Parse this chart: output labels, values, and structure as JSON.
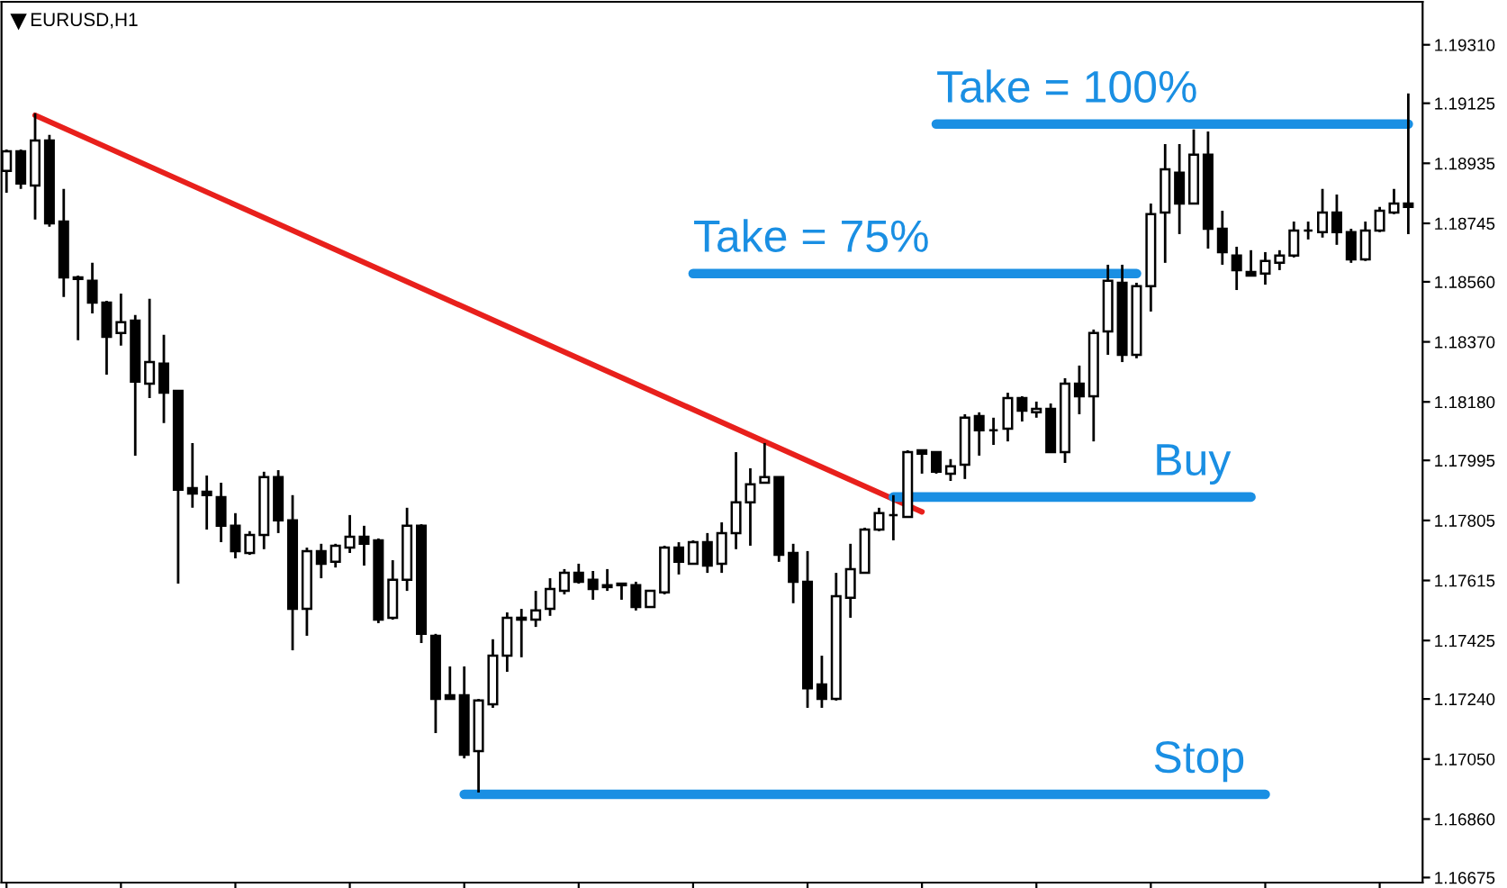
{
  "chart_data": {
    "type": "candlestick",
    "title": "EURUSD,H1",
    "categories": [
      null,
      null,
      null,
      null,
      null,
      null,
      null,
      null,
      null,
      null,
      null,
      null,
      null,
      null,
      null,
      null,
      null,
      null,
      null,
      null,
      null,
      null,
      null,
      null,
      null,
      null,
      null,
      null,
      null,
      null,
      null,
      null,
      null,
      null,
      null,
      null,
      null,
      null,
      null,
      null,
      null,
      null,
      null,
      null,
      null,
      null,
      null,
      null,
      null,
      null,
      null,
      null,
      null,
      null,
      null,
      null,
      null,
      null,
      null,
      null,
      null,
      null,
      null,
      null,
      null,
      null,
      null,
      null,
      null,
      null,
      null,
      null,
      null,
      null,
      null,
      null,
      null,
      null,
      null,
      null,
      null,
      null,
      null,
      null,
      null,
      null,
      null,
      null,
      null,
      null,
      null,
      null,
      null,
      null,
      null,
      null,
      null,
      null,
      null
    ],
    "ohlc": [
      [
        1.18911,
        1.18979,
        1.18842,
        1.18973
      ],
      [
        1.18973,
        1.18979,
        1.18854,
        1.18871
      ],
      [
        1.18865,
        1.19093,
        1.18757,
        1.19007
      ],
      [
        1.19007,
        1.19025,
        1.18734,
        1.18745
      ],
      [
        1.18751,
        1.18854,
        1.18512,
        1.18574
      ],
      [
        1.18574,
        1.1858,
        1.18375,
        1.18569
      ],
      [
        1.18563,
        1.1862,
        1.1846,
        1.18494
      ],
      [
        1.18494,
        1.185,
        1.18266,
        1.18386
      ],
      [
        1.18398,
        1.18523,
        1.18358,
        1.18432
      ],
      [
        1.18437,
        1.18455,
        1.1801,
        1.18244
      ],
      [
        1.18238,
        1.18506,
        1.18192,
        1.18306
      ],
      [
        1.18301,
        1.18392,
        1.18113,
        1.18209
      ],
      [
        1.18215,
        1.18215,
        1.17605,
        1.17902
      ],
      [
        1.17907,
        1.1805,
        1.17845,
        1.1789
      ],
      [
        1.17896,
        1.17947,
        1.17776,
        1.17885
      ],
      [
        1.17879,
        1.17924,
        1.17736,
        1.17788
      ],
      [
        1.17788,
        1.17828,
        1.17685,
        1.17708
      ],
      [
        1.17702,
        1.17771,
        1.17696,
        1.17759
      ],
      [
        1.17759,
        1.17959,
        1.17714,
        1.17942
      ],
      [
        1.17942,
        1.17964,
        1.17765,
        1.17805
      ],
      [
        1.17805,
        1.17885,
        1.17394,
        1.17525
      ],
      [
        1.17525,
        1.17719,
        1.1744,
        1.17708
      ],
      [
        1.17708,
        1.17731,
        1.17622,
        1.17668
      ],
      [
        1.17674,
        1.17731,
        1.17656,
        1.17725
      ],
      [
        1.17719,
        1.17822,
        1.17702,
        1.17753
      ],
      [
        1.17753,
        1.17788,
        1.17662,
        1.17731
      ],
      [
        1.17742,
        1.17748,
        1.1748,
        1.17491
      ],
      [
        1.17497,
        1.17679,
        1.17491,
        1.17617
      ],
      [
        1.17617,
        1.17845,
        1.17582,
        1.17788
      ],
      [
        1.17788,
        1.17793,
        1.17417,
        1.17446
      ],
      [
        1.1744,
        1.17446,
        1.17132,
        1.1724
      ],
      [
        1.17252,
        1.17343,
        1.1724,
        1.1724
      ],
      [
        1.17252,
        1.17343,
        1.17052,
        1.17064
      ],
      [
        1.17075,
        1.1724,
        1.16944,
        1.17235
      ],
      [
        1.17223,
        1.17429,
        1.17212,
        1.17377
      ],
      [
        1.17377,
        1.17514,
        1.17326,
        1.17497
      ],
      [
        1.17497,
        1.17525,
        1.17372,
        1.17491
      ],
      [
        1.17491,
        1.17582,
        1.17468,
        1.1752
      ],
      [
        1.17525,
        1.17622,
        1.17503,
        1.17588
      ],
      [
        1.17582,
        1.17651,
        1.17571,
        1.17639
      ],
      [
        1.17639,
        1.17668,
        1.17605,
        1.17611
      ],
      [
        1.17617,
        1.17645,
        1.17554,
        1.17588
      ],
      [
        1.176,
        1.17651,
        1.17582,
        1.17594
      ],
      [
        1.17605,
        1.17605,
        1.17554,
        1.176
      ],
      [
        1.176,
        1.17611,
        1.1752,
        1.17531
      ],
      [
        1.17531,
        1.17582,
        1.17531,
        1.17582
      ],
      [
        1.17577,
        1.17725,
        1.17571,
        1.17719
      ],
      [
        1.17719,
        1.17736,
        1.17634,
        1.17674
      ],
      [
        1.17668,
        1.17742,
        1.17668,
        1.17736
      ],
      [
        1.17736,
        1.17765,
        1.17639,
        1.17662
      ],
      [
        1.17668,
        1.17799,
        1.17639,
        1.17765
      ],
      [
        1.17765,
        1.18021,
        1.17714,
        1.17862
      ],
      [
        1.17862,
        1.1797,
        1.17725,
        1.17919
      ],
      [
        1.17924,
        1.1805,
        1.17924,
        1.17942
      ],
      [
        1.17942,
        1.17942,
        1.17674,
        1.17696
      ],
      [
        1.17702,
        1.17731,
        1.17543,
        1.17611
      ],
      [
        1.17611,
        1.17708,
        1.17212,
        1.17274
      ],
      [
        1.17286,
        1.17377,
        1.17212,
        1.1724
      ],
      [
        1.1724,
        1.17639,
        1.17235,
        1.17565
      ],
      [
        1.1756,
        1.17731,
        1.17497,
        1.17651
      ],
      [
        1.17639,
        1.17782,
        1.17639,
        1.17776
      ],
      [
        1.17776,
        1.17845,
        1.17771,
        1.17828
      ],
      [
        1.17822,
        1.17885,
        1.17742,
        1.17822
      ],
      [
        1.17816,
        1.18027,
        1.17816,
        1.18021
      ],
      [
        1.18027,
        1.18027,
        1.17953,
        1.18016
      ],
      [
        1.18021,
        1.18021,
        1.17953,
        1.17959
      ],
      [
        1.17953,
        1.17999,
        1.1793,
        1.17976
      ],
      [
        1.17981,
        1.18141,
        1.17936,
        1.1813
      ],
      [
        1.18135,
        1.18147,
        1.1801,
        1.1809
      ],
      [
        1.1809,
        1.1813,
        1.18044,
        1.1809
      ],
      [
        1.18095,
        1.18209,
        1.18055,
        1.18192
      ],
      [
        1.18192,
        1.18198,
        1.18118,
        1.18152
      ],
      [
        1.18147,
        1.18181,
        1.1813,
        1.18158
      ],
      [
        1.18158,
        1.18175,
        1.18021,
        1.18021
      ],
      [
        1.18021,
        1.18255,
        1.17987,
        1.18238
      ],
      [
        1.18238,
        1.18295,
        1.18141,
        1.18198
      ],
      [
        1.18198,
        1.18409,
        1.18055,
        1.18398
      ],
      [
        1.18403,
        1.18614,
        1.18329,
        1.18563
      ],
      [
        1.18557,
        1.18614,
        1.18306,
        1.18329
      ],
      [
        1.18329,
        1.18557,
        1.18318,
        1.18546
      ],
      [
        1.18546,
        1.18808,
        1.18466,
        1.18774
      ],
      [
        1.18779,
        1.18996,
        1.1862,
        1.18916
      ],
      [
        1.18905,
        1.18996,
        1.18711,
        1.18808
      ],
      [
        1.18808,
        1.19042,
        1.18808,
        1.18962
      ],
      [
        1.18962,
        1.19036,
        1.18665,
        1.18728
      ],
      [
        1.18728,
        1.18785,
        1.18614,
        1.18654
      ],
      [
        1.18643,
        1.18671,
        1.18534,
        1.18597
      ],
      [
        1.18591,
        1.1866,
        1.1858,
        1.1858
      ],
      [
        1.18586,
        1.18654,
        1.18551,
        1.18626
      ],
      [
        1.1862,
        1.1866,
        1.18597,
        1.18643
      ],
      [
        1.18643,
        1.18751,
        1.18637,
        1.18722
      ],
      [
        1.18722,
        1.18751,
        1.18694,
        1.18722
      ],
      [
        1.18717,
        1.18854,
        1.187,
        1.18779
      ],
      [
        1.18779,
        1.18836,
        1.18677,
        1.18717
      ],
      [
        1.18717,
        1.18728,
        1.1862,
        1.18631
      ],
      [
        1.18631,
        1.18751,
        1.18626,
        1.18722
      ],
      [
        1.18722,
        1.18797,
        1.18717,
        1.18785
      ],
      [
        1.18779,
        1.18854,
        1.18774,
        1.18808
      ],
      [
        1.18808,
        1.19156,
        1.18711,
        1.18797
      ]
    ],
    "series": [
      {
        "type": "line",
        "color": "#e8201c",
        "values": [
          null,
          null,
          1.19087,
          null,
          null,
          null,
          null,
          null,
          null,
          null,
          null,
          null,
          null,
          null,
          null,
          null,
          null,
          null,
          null,
          null,
          null,
          null,
          null,
          null,
          null,
          null,
          null,
          null,
          null,
          null,
          null,
          null,
          null,
          null,
          null,
          null,
          null,
          null,
          null,
          null,
          null,
          null,
          null,
          null,
          null,
          null,
          null,
          null,
          null,
          null,
          null,
          null,
          null,
          null,
          null,
          null,
          null,
          null,
          null,
          null,
          null,
          null,
          null,
          null,
          1.17832,
          null,
          null,
          null,
          null,
          null,
          null,
          null,
          null,
          null,
          null,
          null,
          null,
          null,
          null,
          null,
          null,
          null,
          null,
          null,
          null,
          null,
          null,
          null,
          null,
          null,
          null,
          null,
          null,
          null,
          null,
          null,
          null,
          null,
          null
        ]
      },
      {
        "type": "line",
        "name": "Take = 100%",
        "color": "#1a8fe3",
        "values": [
          null,
          null,
          null,
          null,
          null,
          null,
          null,
          null,
          null,
          null,
          null,
          null,
          null,
          null,
          null,
          null,
          null,
          null,
          null,
          null,
          null,
          null,
          null,
          null,
          null,
          null,
          null,
          null,
          null,
          null,
          null,
          null,
          null,
          null,
          null,
          null,
          null,
          null,
          null,
          null,
          null,
          null,
          null,
          null,
          null,
          null,
          null,
          null,
          null,
          null,
          null,
          null,
          null,
          null,
          null,
          null,
          null,
          null,
          null,
          null,
          null,
          null,
          null,
          null,
          null,
          1.19059,
          null,
          null,
          null,
          null,
          null,
          null,
          null,
          null,
          null,
          null,
          null,
          null,
          null,
          null,
          null,
          null,
          null,
          null,
          null,
          null,
          null,
          null,
          null,
          null,
          null,
          null,
          null,
          null,
          null,
          null,
          null,
          null,
          1.19059
        ]
      },
      {
        "type": "line",
        "name": "Take = 75%",
        "color": "#1a8fe3",
        "values": [
          null,
          null,
          null,
          null,
          null,
          null,
          null,
          null,
          null,
          null,
          null,
          null,
          null,
          null,
          null,
          null,
          null,
          null,
          null,
          null,
          null,
          null,
          null,
          null,
          null,
          null,
          null,
          null,
          null,
          null,
          null,
          null,
          null,
          null,
          null,
          null,
          null,
          null,
          null,
          null,
          null,
          null,
          null,
          null,
          null,
          null,
          null,
          null,
          1.18586,
          null,
          null,
          null,
          null,
          null,
          null,
          null,
          null,
          null,
          null,
          null,
          null,
          null,
          null,
          null,
          null,
          null,
          null,
          null,
          null,
          null,
          null,
          null,
          null,
          null,
          null,
          null,
          null,
          null,
          null,
          1.18586,
          null,
          null,
          null,
          null,
          null,
          null,
          null,
          null,
          null,
          null,
          null,
          null,
          null,
          null,
          null,
          null,
          null,
          null,
          null
        ]
      },
      {
        "type": "line",
        "name": "Buy",
        "color": "#1a8fe3",
        "values": [
          null,
          null,
          null,
          null,
          null,
          null,
          null,
          null,
          null,
          null,
          null,
          null,
          null,
          null,
          null,
          null,
          null,
          null,
          null,
          null,
          null,
          null,
          null,
          null,
          null,
          null,
          null,
          null,
          null,
          null,
          null,
          null,
          null,
          null,
          null,
          null,
          null,
          null,
          null,
          null,
          null,
          null,
          null,
          null,
          null,
          null,
          null,
          null,
          null,
          null,
          null,
          null,
          null,
          null,
          null,
          null,
          null,
          null,
          null,
          null,
          null,
          null,
          1.17879,
          null,
          null,
          null,
          null,
          null,
          null,
          null,
          null,
          null,
          null,
          null,
          null,
          null,
          null,
          null,
          null,
          null,
          null,
          null,
          null,
          null,
          null,
          null,
          null,
          1.17879,
          null,
          null,
          null,
          null,
          null,
          null,
          null,
          null,
          null,
          null,
          null
        ]
      },
      {
        "type": "line",
        "name": "Stop",
        "color": "#1a8fe3",
        "values": [
          null,
          null,
          null,
          null,
          null,
          null,
          null,
          null,
          null,
          null,
          null,
          null,
          null,
          null,
          null,
          null,
          null,
          null,
          null,
          null,
          null,
          null,
          null,
          null,
          null,
          null,
          null,
          null,
          null,
          null,
          null,
          null,
          1.16938,
          null,
          null,
          null,
          null,
          null,
          null,
          null,
          null,
          null,
          null,
          null,
          null,
          null,
          null,
          null,
          null,
          null,
          null,
          null,
          null,
          null,
          null,
          null,
          null,
          null,
          null,
          null,
          null,
          null,
          null,
          null,
          null,
          null,
          null,
          null,
          null,
          null,
          null,
          null,
          null,
          null,
          null,
          null,
          null,
          null,
          null,
          null,
          null,
          null,
          null,
          null,
          null,
          null,
          null,
          null,
          1.16938,
          null,
          null,
          null,
          null,
          null,
          null,
          null,
          null,
          null,
          null
        ]
      }
    ],
    "ylim": [
      1.16659,
      1.19446
    ],
    "yticks": [
      {
        "value": 1.1931,
        "label": "1.19310"
      },
      {
        "value": 1.19125,
        "label": "1.19125"
      },
      {
        "value": 1.18935,
        "label": "1.18935"
      },
      {
        "value": 1.18745,
        "label": "1.18745"
      },
      {
        "value": 1.1856,
        "label": "1.18560"
      },
      {
        "value": 1.1837,
        "label": "1.18370"
      },
      {
        "value": 1.1818,
        "label": "1.18180"
      },
      {
        "value": 1.17995,
        "label": "1.17995"
      },
      {
        "value": 1.17805,
        "label": "1.17805"
      },
      {
        "value": 1.17615,
        "label": "1.17615"
      },
      {
        "value": 1.17425,
        "label": "1.17425"
      },
      {
        "value": 1.1724,
        "label": "1.17240"
      },
      {
        "value": 1.1705,
        "label": "1.17050"
      },
      {
        "value": 1.1686,
        "label": "1.16860"
      },
      {
        "value": 1.16675,
        "label": "1.16675"
      }
    ],
    "tick_labels": "y",
    "grid": false
  }
}
